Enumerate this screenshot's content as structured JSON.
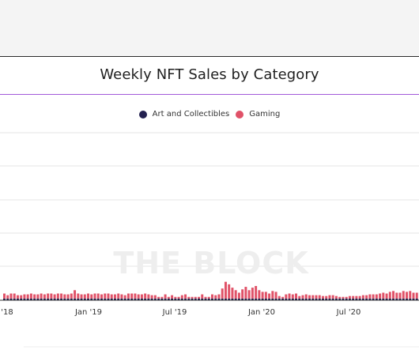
{
  "chart_data": {
    "type": "bar",
    "title": "Weekly NFT Sales by Category",
    "watermark": "THE BLOCK",
    "x_tick_labels": [
      "l '18",
      "Jan '19",
      "Jul '19",
      "Jan '20",
      "Jul '20"
    ],
    "series": [
      {
        "name": "Art and Collectibles",
        "color": "#232150",
        "values": [
          0.2,
          0.2,
          0.2,
          0.2,
          0.2,
          0.2,
          0.2,
          0.2,
          0.2,
          0.2,
          0.2,
          0.2,
          0.2,
          0.2,
          0.2,
          0.2,
          0.2,
          0.2,
          0.2,
          0.2,
          0.2,
          0.2,
          0.2,
          0.2,
          0.2,
          0.2,
          0.2,
          0.2,
          0.2,
          0.2,
          0.2,
          0.2,
          0.2,
          0.2,
          0.2,
          0.2,
          0.2,
          0.2,
          0.2,
          0.2,
          0.2,
          0.2,
          0.2,
          0.2,
          0.2,
          0.2,
          0.2,
          0.2,
          0.2,
          0.2,
          0.2,
          0.2,
          0.2,
          0.2,
          0.2,
          0.2,
          0.2,
          0.2,
          0.2,
          0.2,
          0.2,
          0.2,
          0.2,
          0.2,
          0.2,
          0.2,
          0.2,
          0.2,
          0.2,
          0.2,
          0.2,
          0.2,
          0.2,
          0.2,
          0.2,
          0.2,
          0.2,
          0.2,
          0.2,
          0.2,
          0.2,
          0.2,
          0.2,
          0.2,
          0.2,
          0.2,
          0.2,
          0.2,
          0.2,
          0.2,
          0.2,
          0.2,
          0.2,
          0.2,
          0.2,
          0.2,
          0.2,
          0.2,
          0.2,
          0.2,
          0.2,
          0.2,
          0.2,
          0.2,
          0.2,
          0.2,
          0.2,
          0.2,
          0.2,
          0.2,
          0.2,
          0.2,
          0.2,
          0.2,
          0.2,
          0.2,
          0.2,
          0.2,
          0.2,
          0.2,
          0.2,
          0.2,
          0.2,
          0.2
        ]
      },
      {
        "name": "Gaming",
        "color": "#e05268",
        "values": [
          0.6,
          0.4,
          0.6,
          0.6,
          0.4,
          0.4,
          0.5,
          0.5,
          0.6,
          0.5,
          0.5,
          0.6,
          0.5,
          0.6,
          0.6,
          0.5,
          0.6,
          0.6,
          0.5,
          0.5,
          0.6,
          1.0,
          0.6,
          0.5,
          0.5,
          0.6,
          0.5,
          0.6,
          0.6,
          0.5,
          0.6,
          0.6,
          0.5,
          0.5,
          0.6,
          0.5,
          0.4,
          0.6,
          0.6,
          0.6,
          0.5,
          0.5,
          0.6,
          0.5,
          0.4,
          0.4,
          0.2,
          0.2,
          0.5,
          0.2,
          0.4,
          0.2,
          0.2,
          0.4,
          0.5,
          0.2,
          0.2,
          0.2,
          0.2,
          0.5,
          0.2,
          0.2,
          0.5,
          0.4,
          0.5,
          1.2,
          2.0,
          1.7,
          1.3,
          1.0,
          0.7,
          1.1,
          1.4,
          1.0,
          1.3,
          1.5,
          1.0,
          0.8,
          0.8,
          0.6,
          0.9,
          0.8,
          0.3,
          0.2,
          0.5,
          0.6,
          0.5,
          0.6,
          0.3,
          0.4,
          0.5,
          0.4,
          0.4,
          0.4,
          0.4,
          0.3,
          0.3,
          0.4,
          0.4,
          0.3,
          0.2,
          0.2,
          0.2,
          0.3,
          0.3,
          0.3,
          0.3,
          0.4,
          0.4,
          0.5,
          0.5,
          0.5,
          0.6,
          0.7,
          0.6,
          0.8,
          0.9,
          0.7,
          0.7,
          0.9,
          0.8,
          0.9,
          0.7,
          0.7
        ]
      }
    ],
    "ylim": [
      0,
      20
    ],
    "grid": true,
    "legend": "top-center"
  }
}
